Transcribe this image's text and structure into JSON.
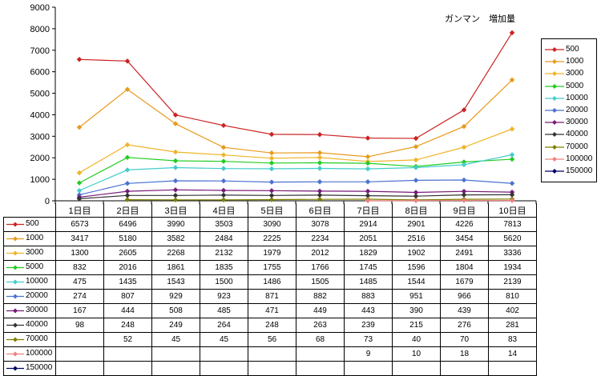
{
  "chart_data": {
    "type": "line",
    "title": "ガンマン　増加量",
    "categories": [
      "1日目",
      "2日目",
      "3日目",
      "4日目",
      "5日目",
      "6日目",
      "7日目",
      "8日目",
      "9日目",
      "10日目"
    ],
    "ylim": [
      0,
      9000
    ],
    "yticks": [
      "0",
      "1000",
      "2000",
      "3000",
      "4000",
      "5000",
      "6000",
      "7000",
      "8000",
      "9000"
    ],
    "grid": false,
    "legend_position": "right",
    "series": [
      {
        "name": "500",
        "color": "#cc2222",
        "marker": "diamond",
        "values": [
          6573,
          6496,
          3990,
          3503,
          3090,
          3078,
          2914,
          2901,
          4226,
          7813
        ],
        "labels": [
          "6573",
          "6496",
          "3990",
          "3503",
          "3090",
          "3078",
          "2914",
          "2901",
          "4226",
          "7813"
        ]
      },
      {
        "name": "1000",
        "color": "#e89a1c",
        "marker": "diamond",
        "values": [
          3417,
          5180,
          3582,
          2484,
          2225,
          2234,
          2051,
          2516,
          3454,
          5620
        ],
        "labels": [
          "3417",
          "5180",
          "3582",
          "2484",
          "2225",
          "2234",
          "2051",
          "2516",
          "3454",
          "5620"
        ]
      },
      {
        "name": "3000",
        "color": "#f0b428",
        "marker": "diamond",
        "values": [
          1300,
          2605,
          2268,
          2132,
          1979,
          2012,
          1829,
          1902,
          2491,
          3336
        ],
        "labels": [
          "1300",
          "2605",
          "2268",
          "2132",
          "1979",
          "2012",
          "1829",
          "1902",
          "2491",
          "3336"
        ]
      },
      {
        "name": "5000",
        "color": "#22cc22",
        "marker": "diamond",
        "values": [
          832,
          2016,
          1861,
          1835,
          1755,
          1766,
          1745,
          1596,
          1804,
          1934
        ],
        "labels": [
          "832",
          "2016",
          "1861",
          "1835",
          "1755",
          "1766",
          "1745",
          "1596",
          "1804",
          "1934"
        ]
      },
      {
        "name": "10000",
        "color": "#44cccc",
        "marker": "diamond",
        "values": [
          475,
          1435,
          1543,
          1500,
          1486,
          1505,
          1485,
          1544,
          1679,
          2139
        ],
        "labels": [
          "475",
          "1435",
          "1543",
          "1500",
          "1486",
          "1505",
          "1485",
          "1544",
          "1679",
          "2139"
        ]
      },
      {
        "name": "20000",
        "color": "#4a72d0",
        "marker": "diamond",
        "values": [
          274,
          807,
          929,
          923,
          871,
          882,
          883,
          951,
          966,
          810
        ],
        "labels": [
          "274",
          "807",
          "929",
          "923",
          "871",
          "882",
          "883",
          "951",
          "966",
          "810"
        ]
      },
      {
        "name": "30000",
        "color": "#771a77",
        "marker": "diamond",
        "values": [
          167,
          444,
          508,
          485,
          471,
          449,
          443,
          390,
          439,
          402
        ],
        "labels": [
          "167",
          "444",
          "508",
          "485",
          "471",
          "449",
          "443",
          "390",
          "439",
          "402"
        ]
      },
      {
        "name": "40000",
        "color": "#333333",
        "marker": "diamond",
        "values": [
          98,
          248,
          249,
          264,
          248,
          263,
          239,
          215,
          276,
          281
        ],
        "labels": [
          "98",
          "248",
          "249",
          "264",
          "248",
          "263",
          "239",
          "215",
          "276",
          "281"
        ]
      },
      {
        "name": "70000",
        "color": "#808000",
        "marker": "diamond",
        "values": [
          null,
          52,
          45,
          45,
          56,
          68,
          73,
          40,
          70,
          83
        ],
        "labels": [
          "",
          "52",
          "45",
          "45",
          "56",
          "68",
          "73",
          "40",
          "70",
          "83"
        ]
      },
      {
        "name": "100000",
        "color": "#f08080",
        "marker": "diamond",
        "values": [
          null,
          null,
          null,
          null,
          null,
          null,
          9,
          10,
          18,
          14
        ],
        "labels": [
          "",
          "",
          "",
          "",
          "",
          "",
          "9",
          "10",
          "18",
          "14"
        ]
      },
      {
        "name": "150000",
        "color": "#000066",
        "marker": "diamond",
        "values": [
          null,
          null,
          null,
          null,
          null,
          null,
          null,
          null,
          null,
          null
        ],
        "labels": [
          "",
          "",
          "",
          "",
          "",
          "",
          "",
          "",
          "",
          ""
        ]
      }
    ]
  }
}
